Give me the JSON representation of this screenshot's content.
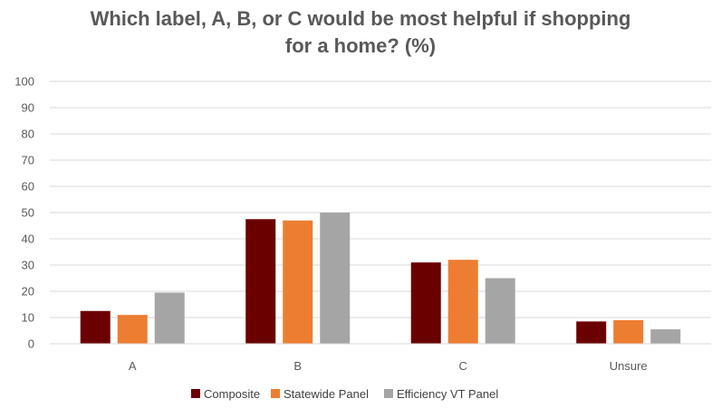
{
  "chart_data": {
    "type": "bar",
    "title_lines": [
      "Which label, A, B, or C would be most helpful if shopping",
      "for a home? (%)"
    ],
    "categories": [
      "A",
      "B",
      "C",
      "Unsure"
    ],
    "series": [
      {
        "name": "Composite",
        "color": "#6b0000",
        "values": [
          12.5,
          47.5,
          31,
          8.5
        ]
      },
      {
        "name": "Statewide  Panel",
        "color": "#ed7d31",
        "values": [
          11,
          47,
          32,
          9
        ]
      },
      {
        "name": "Efficiency VT Panel",
        "color": "#a5a5a5",
        "values": [
          19.5,
          50,
          25,
          5.5
        ]
      }
    ],
    "ylim": [
      0,
      100
    ],
    "yticks": [
      0,
      10,
      20,
      30,
      40,
      50,
      60,
      70,
      80,
      90,
      100
    ],
    "grid": true,
    "legend_position": "bottom"
  }
}
